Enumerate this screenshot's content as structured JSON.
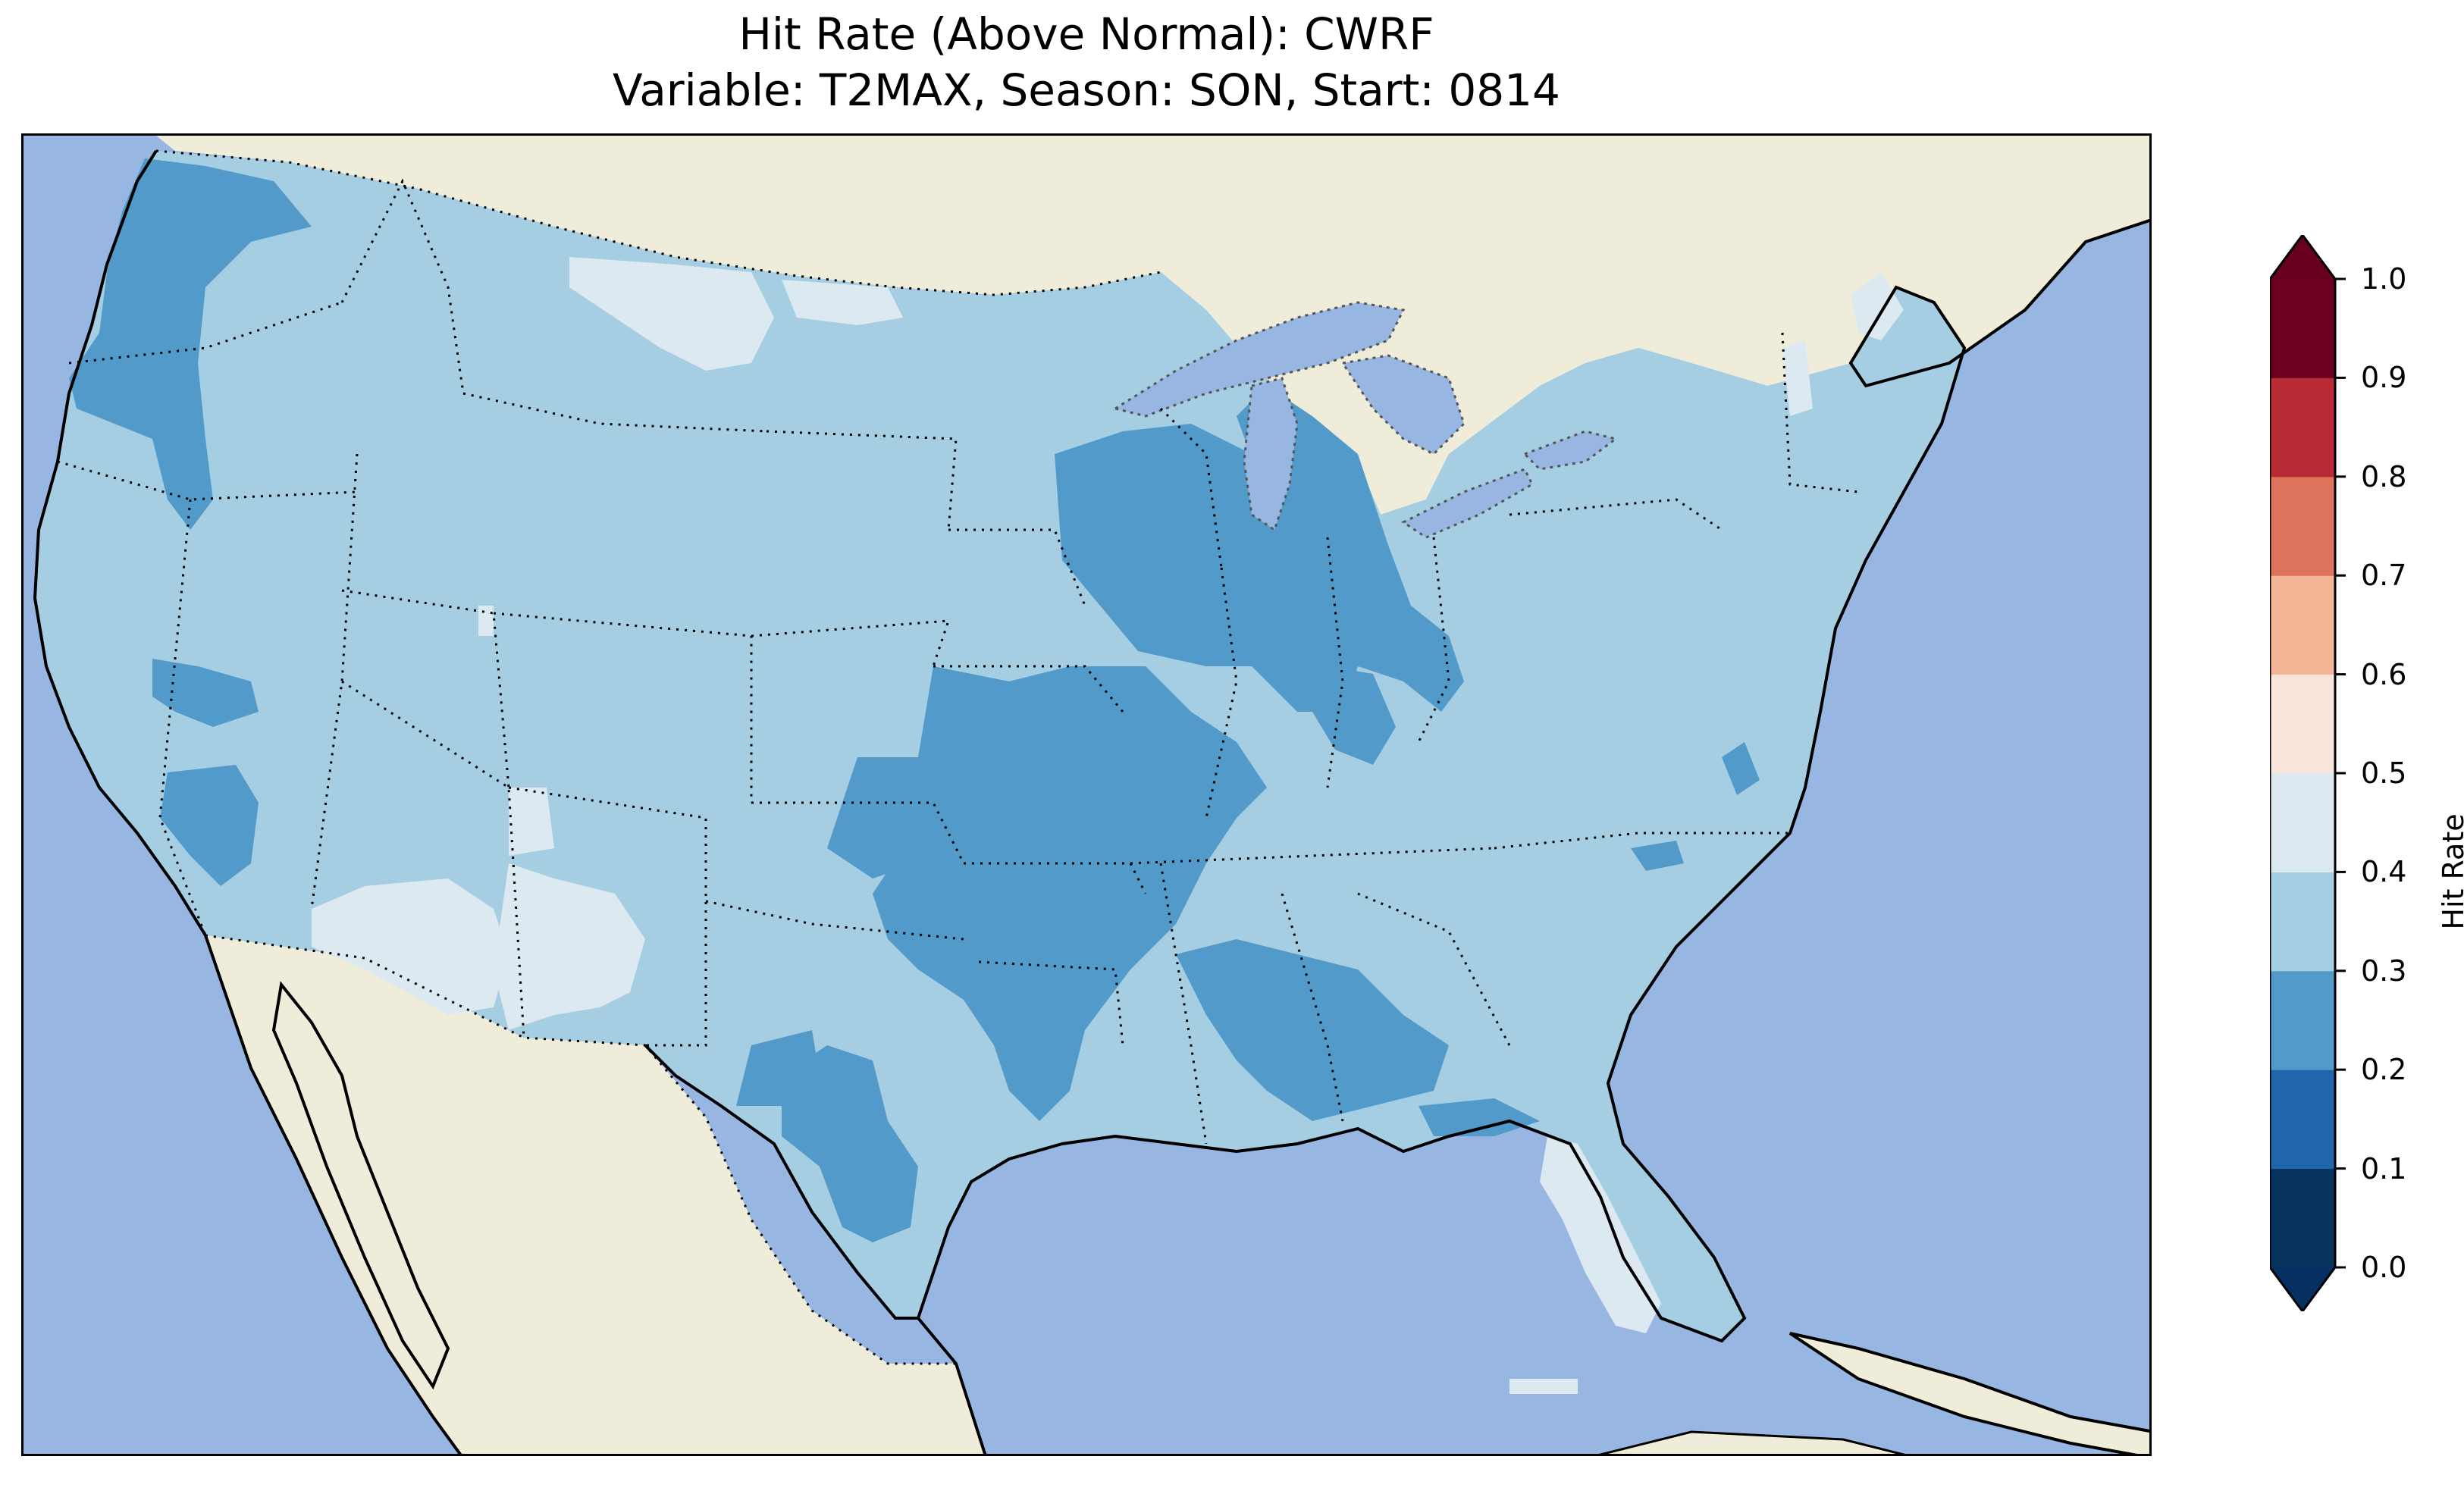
{
  "title": {
    "line1": "Hit Rate (Above Normal): CWRF",
    "line2": "Variable: T2MAX, Season: SON, Start: 0814"
  },
  "map": {
    "projection": "Lambert Conformal",
    "region": "Contiguous United States",
    "ocean_color": "#97b6e1",
    "land_color": "#efedda",
    "coastlines": "solid black",
    "borders": "dotted black"
  },
  "colorbar": {
    "label": "Hit Rate",
    "ticks": [
      "0.0",
      "0.1",
      "0.2",
      "0.3",
      "0.4",
      "0.5",
      "0.6",
      "0.7",
      "0.8",
      "0.9",
      "1.0"
    ],
    "colors": [
      "#053061",
      "#2166ac",
      "#4393c3",
      "#92c5de",
      "#d1e5f0",
      "#f7f7f7",
      "#fddbc7",
      "#f4a582",
      "#d6604d",
      "#b2182b",
      "#67001f"
    ],
    "bins": [
      {
        "range": "0.0-0.1",
        "color": "#08335f"
      },
      {
        "range": "0.1-0.2",
        "color": "#2166ac"
      },
      {
        "range": "0.2-0.3",
        "color": "#529ac9"
      },
      {
        "range": "0.3-0.4",
        "color": "#a6cee3"
      },
      {
        "range": "0.4-0.5",
        "color": "#dce9f1"
      },
      {
        "range": "0.5-0.6",
        "color": "#f9e5dc"
      },
      {
        "range": "0.6-0.7",
        "color": "#f5b597"
      },
      {
        "range": "0.7-0.8",
        "color": "#dd735a"
      },
      {
        "range": "0.8-0.9",
        "color": "#b82a34"
      },
      {
        "range": "0.9-1.0",
        "color": "#6b0020"
      }
    ],
    "extend": "both",
    "under_color": "#053061",
    "over_color": "#67001f"
  },
  "regions": [
    {
      "name": "pacific-northwest-coast",
      "range": "0.2-0.3"
    },
    {
      "name": "upper-midwest",
      "range": "0.2-0.3"
    },
    {
      "name": "mississippi-valley",
      "range": "0.2-0.3"
    },
    {
      "name": "deep-south",
      "range": "0.2-0.3"
    },
    {
      "name": "south-texas",
      "range": "0.2-0.3"
    },
    {
      "name": "nevada-patches",
      "range": "0.2-0.3"
    },
    {
      "name": "northern-montana",
      "range": "0.4-0.5"
    },
    {
      "name": "arizona",
      "range": "0.4-0.5"
    },
    {
      "name": "new-mexico",
      "range": "0.4-0.5"
    },
    {
      "name": "florida-peninsula",
      "range": "0.4-0.5"
    },
    {
      "name": "northern-new-england",
      "range": "0.4-0.5"
    },
    {
      "name": "remaining-conus",
      "range": "0.3-0.4"
    }
  ]
}
